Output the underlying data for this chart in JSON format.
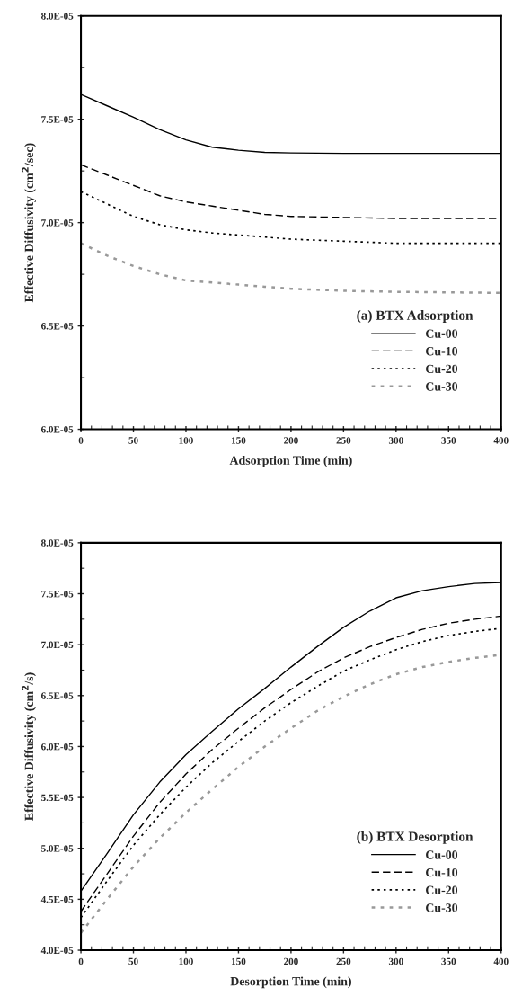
{
  "chart_data": [
    {
      "type": "line",
      "legend_title": "(a) BTX Adsorption",
      "xlabel": "Adsorption Time (min)",
      "ylabel": "Effective Diffusivity (cm$^{2}$/sec)",
      "x": [
        0,
        25,
        50,
        75,
        100,
        125,
        150,
        175,
        200,
        250,
        300,
        400
      ],
      "series": [
        {
          "name": "Cu-00",
          "color": "#000000",
          "line_style": "solid",
          "values": [
            7.62e-05,
            7.565e-05,
            7.51e-05,
            7.45e-05,
            7.4e-05,
            7.365e-05,
            7.35e-05,
            7.34e-05,
            7.337e-05,
            7.335e-05,
            7.335e-05,
            7.335e-05
          ]
        },
        {
          "name": "Cu-10",
          "color": "#000000",
          "line_style": "dashed",
          "values": [
            7.28e-05,
            7.23e-05,
            7.18e-05,
            7.13e-05,
            7.1e-05,
            7.08e-05,
            7.06e-05,
            7.04e-05,
            7.03e-05,
            7.025e-05,
            7.02e-05,
            7.02e-05
          ]
        },
        {
          "name": "Cu-20",
          "color": "#000000",
          "line_style": "dotted",
          "values": [
            7.15e-05,
            7.09e-05,
            7.03e-05,
            6.99e-05,
            6.965e-05,
            6.95e-05,
            6.94e-05,
            6.93e-05,
            6.92e-05,
            6.91e-05,
            6.9e-05,
            6.9e-05
          ]
        },
        {
          "name": "Cu-30",
          "color": "#999999",
          "line_style": "dotted",
          "values": [
            6.9e-05,
            6.84e-05,
            6.79e-05,
            6.75e-05,
            6.72e-05,
            6.71e-05,
            6.7e-05,
            6.69e-05,
            6.68e-05,
            6.67e-05,
            6.665e-05,
            6.66e-05
          ]
        }
      ],
      "xlim": [
        0,
        400
      ],
      "xticks": [
        0,
        50,
        100,
        150,
        200,
        250,
        300,
        350,
        400
      ],
      "ylim": [
        6e-05,
        8e-05
      ],
      "yticks": [
        {
          "value": 6e-05,
          "label": "6.0E-05"
        },
        {
          "value": 6.5e-05,
          "label": "6.5E-05"
        },
        {
          "value": 7e-05,
          "label": "7.0E-05"
        },
        {
          "value": 7.5e-05,
          "label": "7.5E-05"
        },
        {
          "value": 8e-05,
          "label": "8.0E-05"
        }
      ],
      "legend": "bottom right",
      "grid": false
    },
    {
      "type": "line",
      "legend_title": "(b) BTX Desorption",
      "xlabel": "Desorption Time (min)",
      "ylabel": "Effective Diffusivity (cm$^{2}$/s)",
      "x": [
        0,
        25,
        50,
        75,
        100,
        125,
        150,
        175,
        200,
        225,
        250,
        275,
        300,
        325,
        350,
        375,
        400
      ],
      "series": [
        {
          "name": "Cu-00",
          "color": "#000000",
          "line_style": "solid",
          "values": [
            4.58e-05,
            4.95e-05,
            5.33e-05,
            5.65e-05,
            5.92e-05,
            6.15e-05,
            6.37e-05,
            6.57e-05,
            6.78e-05,
            6.98e-05,
            7.17e-05,
            7.33e-05,
            7.46e-05,
            7.53e-05,
            7.57e-05,
            7.6e-05,
            7.61e-05
          ]
        },
        {
          "name": "Cu-10",
          "color": "#000000",
          "line_style": "dashed",
          "values": [
            4.38e-05,
            4.75e-05,
            5.12e-05,
            5.45e-05,
            5.73e-05,
            5.97e-05,
            6.18e-05,
            6.38e-05,
            6.56e-05,
            6.73e-05,
            6.87e-05,
            6.98e-05,
            7.07e-05,
            7.15e-05,
            7.21e-05,
            7.25e-05,
            7.28e-05
          ]
        },
        {
          "name": "Cu-20",
          "color": "#000000",
          "line_style": "dotted",
          "values": [
            4.32e-05,
            4.68e-05,
            5.03e-05,
            5.33e-05,
            5.6e-05,
            5.84e-05,
            6.05e-05,
            6.25e-05,
            6.43e-05,
            6.59e-05,
            6.74e-05,
            6.85e-05,
            6.95e-05,
            7.03e-05,
            7.09e-05,
            7.13e-05,
            7.16e-05
          ]
        },
        {
          "name": "Cu-30",
          "color": "#999999",
          "line_style": "dotted",
          "values": [
            4.17e-05,
            4.5e-05,
            4.82e-05,
            5.1e-05,
            5.35e-05,
            5.58e-05,
            5.8e-05,
            6e-05,
            6.18e-05,
            6.35e-05,
            6.49e-05,
            6.61e-05,
            6.71e-05,
            6.78e-05,
            6.83e-05,
            6.87e-05,
            6.9e-05
          ]
        }
      ],
      "xlim": [
        0,
        400
      ],
      "xticks": [
        0,
        50,
        100,
        150,
        200,
        250,
        300,
        350,
        400
      ],
      "ylim": [
        4e-05,
        8e-05
      ],
      "yticks": [
        {
          "value": 4e-05,
          "label": "4.0E-05"
        },
        {
          "value": 4.5e-05,
          "label": "4.5E-05"
        },
        {
          "value": 5e-05,
          "label": "5.0E-05"
        },
        {
          "value": 5.5e-05,
          "label": "5.5E-05"
        },
        {
          "value": 6e-05,
          "label": "6.0E-05"
        },
        {
          "value": 6.5e-05,
          "label": "6.5E-05"
        },
        {
          "value": 7e-05,
          "label": "7.0E-05"
        },
        {
          "value": 7.5e-05,
          "label": "7.5E-05"
        },
        {
          "value": 8e-05,
          "label": "8.0E-05"
        }
      ],
      "legend": "bottom right",
      "grid": false
    }
  ]
}
